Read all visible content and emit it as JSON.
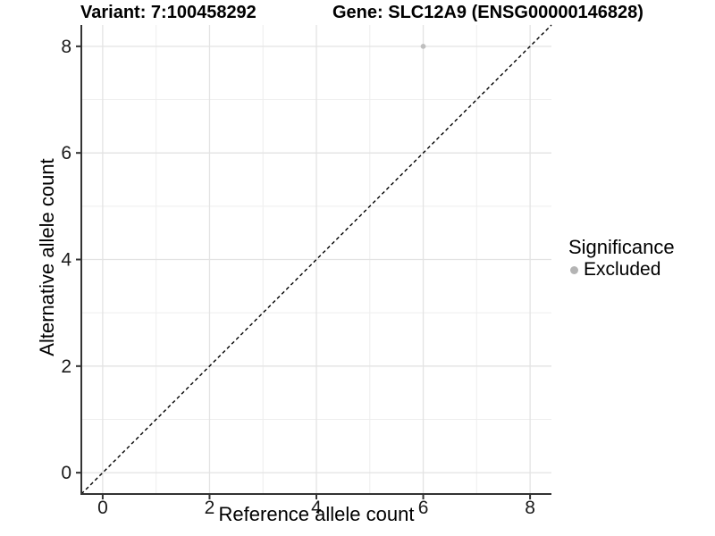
{
  "chart_data": {
    "type": "scatter",
    "title_left": "Variant: 7:100458292",
    "title_right": "Gene: SLC12A9 (ENSG00000146828)",
    "xlabel": "Reference allele count",
    "ylabel": "Alternative allele count",
    "xlim": [
      -0.4,
      8.4
    ],
    "ylim": [
      -0.4,
      8.4
    ],
    "xticks": [
      0,
      2,
      4,
      6,
      8
    ],
    "yticks": [
      0,
      2,
      4,
      6,
      8
    ],
    "xminor": [
      1,
      3,
      5,
      7
    ],
    "yminor": [
      1,
      3,
      5,
      7
    ],
    "grid": "major+minor",
    "axis_lines": "left+bottom",
    "reference_line": {
      "slope": 1,
      "intercept": 0,
      "linetype": "dashed",
      "color": "#000000"
    },
    "series": [
      {
        "name": "Excluded",
        "color": "#bfbfbf",
        "points": [
          {
            "x": 6,
            "y": 8
          }
        ]
      }
    ],
    "legend": {
      "title": "Significance",
      "position": "right",
      "items": [
        {
          "label": "Excluded",
          "color": "#b4b4b4"
        }
      ]
    }
  },
  "colors": {
    "background": "#ffffff",
    "grid_major": "#e3e3e3",
    "grid_minor": "#eeeeee",
    "axis_line": "#333333",
    "tick_mark": "#333333",
    "tick_label": "#1a1a1a",
    "title_text": "#000000"
  }
}
